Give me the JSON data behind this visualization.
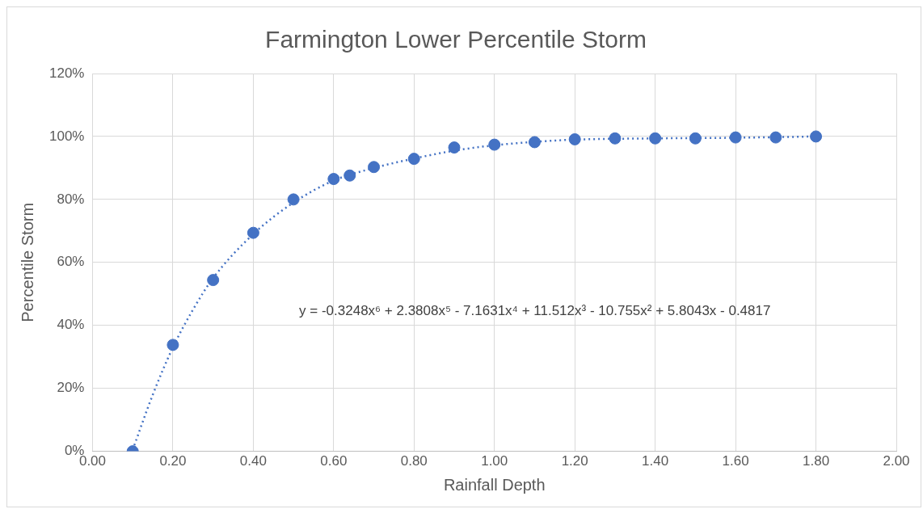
{
  "chart_data": {
    "type": "scatter",
    "title": "Farmington Lower Percentile Storm",
    "xlabel": "Rainfall Depth",
    "ylabel": "Percentile Storm",
    "xlim": [
      0,
      2
    ],
    "xticks": [
      {
        "value": 0,
        "label": "0.00"
      },
      {
        "value": 0.2,
        "label": "0.20"
      },
      {
        "value": 0.4,
        "label": "0.40"
      },
      {
        "value": 0.6,
        "label": "0.60"
      },
      {
        "value": 0.8,
        "label": "0.80"
      },
      {
        "value": 1,
        "label": "1.00"
      },
      {
        "value": 1.2,
        "label": "1.20"
      },
      {
        "value": 1.4,
        "label": "1.40"
      },
      {
        "value": 1.6,
        "label": "1.60"
      },
      {
        "value": 1.8,
        "label": "1.80"
      },
      {
        "value": 2,
        "label": "2.00"
      }
    ],
    "ylim": [
      0,
      120
    ],
    "yticks": [
      {
        "value": 0,
        "label": "0%"
      },
      {
        "value": 20,
        "label": "20%"
      },
      {
        "value": 40,
        "label": "40%"
      },
      {
        "value": 60,
        "label": "60%"
      },
      {
        "value": 80,
        "label": "80%"
      },
      {
        "value": 100,
        "label": "100%"
      },
      {
        "value": 120,
        "label": "120%"
      }
    ],
    "grid": true,
    "legend": false,
    "marker": "circle",
    "series": [
      {
        "type": "line",
        "line_style": "dotted",
        "marker": "none",
        "color": "#4472c4",
        "x": [
          0.1,
          0.15,
          0.2,
          0.25,
          0.3,
          0.4,
          0.5,
          0.6,
          0.7,
          0.8,
          0.9,
          1.0,
          1.1,
          1.2,
          1.4,
          1.6,
          1.8
        ],
        "values": [
          0.5,
          18,
          33,
          45,
          55,
          69,
          79,
          86,
          90,
          93,
          95.5,
          97.2,
          98.3,
          99,
          99.4,
          99.6,
          100
        ]
      },
      {
        "type": "scatter",
        "color": "#4472c4",
        "x": [
          0.1,
          0.2,
          0.3,
          0.4,
          0.5,
          0.6,
          0.64,
          0.7,
          0.8,
          0.9,
          1.0,
          1.1,
          1.2,
          1.3,
          1.4,
          1.5,
          1.6,
          1.7,
          1.8
        ],
        "values": [
          0,
          33.8,
          54.4,
          69.4,
          80,
          86.5,
          87.6,
          90.3,
          92.9,
          96.5,
          97.4,
          98.2,
          99.1,
          99.4,
          99.4,
          99.4,
          99.7,
          99.7,
          100
        ]
      }
    ],
    "annotations": [
      "y = -0.3248x⁶ + 2.3808x⁵ - 7.1631x⁴ + 11.512x³ - 10.755x² + 5.8043x - 0.4817"
    ]
  }
}
